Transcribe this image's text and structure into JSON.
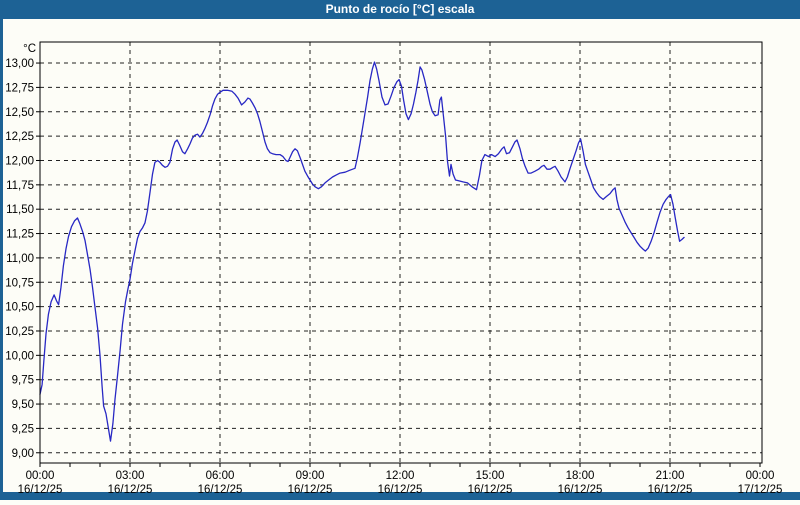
{
  "window": {
    "title": "Punto de rocío [°C] escala"
  },
  "colors": {
    "titlebar_bg": "#1d6295",
    "border_accent": "#1d6295",
    "background": "#fdfdf7",
    "plot_background": "#fdfdf7",
    "line": "#2828c4",
    "grid": "#222222",
    "plot_border": "#000000",
    "text": "#000000"
  },
  "chart_data": {
    "type": "line",
    "title": "Punto de rocío [°C] escala",
    "ylabel": "°C",
    "xlabel": "",
    "grid": true,
    "legend": false,
    "ylim": [
      8.9,
      13.2
    ],
    "xlim_hours": [
      0,
      24.07
    ],
    "y_ticks": [
      {
        "v": 13.0,
        "label": "13,00"
      },
      {
        "v": 12.75,
        "label": "12,75"
      },
      {
        "v": 12.5,
        "label": "12,50"
      },
      {
        "v": 12.25,
        "label": "12,25"
      },
      {
        "v": 12.0,
        "label": "12,00"
      },
      {
        "v": 11.75,
        "label": "11,75"
      },
      {
        "v": 11.5,
        "label": "11,50"
      },
      {
        "v": 11.25,
        "label": "11,25"
      },
      {
        "v": 11.0,
        "label": "11,00"
      },
      {
        "v": 10.75,
        "label": "10,75"
      },
      {
        "v": 10.5,
        "label": "10,50"
      },
      {
        "v": 10.25,
        "label": "10,25"
      },
      {
        "v": 10.0,
        "label": "10,00"
      },
      {
        "v": 9.75,
        "label": "9,75"
      },
      {
        "v": 9.5,
        "label": "9,50"
      },
      {
        "v": 9.25,
        "label": "9,25"
      },
      {
        "v": 9.0,
        "label": "9,00"
      }
    ],
    "x_ticks": [
      {
        "hour": 0,
        "label": "00:00",
        "date": "16/12/25"
      },
      {
        "hour": 3,
        "label": "03:00",
        "date": "16/12/25"
      },
      {
        "hour": 6,
        "label": "06:00",
        "date": "16/12/25"
      },
      {
        "hour": 9,
        "label": "09:00",
        "date": "16/12/25"
      },
      {
        "hour": 12,
        "label": "12:00",
        "date": "16/12/25"
      },
      {
        "hour": 15,
        "label": "15:00",
        "date": "16/12/25"
      },
      {
        "hour": 18,
        "label": "18:00",
        "date": "16/12/25"
      },
      {
        "hour": 21,
        "label": "21:00",
        "date": "16/12/25"
      },
      {
        "hour": 24,
        "label": "00:00",
        "date": "17/12/25"
      }
    ],
    "minor_tick_every_hours": 1,
    "series": [
      {
        "name": "Punto de rocío [°C]",
        "points": [
          [
            0.0,
            9.6
          ],
          [
            0.07,
            9.7
          ],
          [
            0.13,
            9.95
          ],
          [
            0.2,
            10.22
          ],
          [
            0.28,
            10.42
          ],
          [
            0.37,
            10.55
          ],
          [
            0.47,
            10.62
          ],
          [
            0.55,
            10.56
          ],
          [
            0.62,
            10.52
          ],
          [
            0.7,
            10.7
          ],
          [
            0.78,
            10.92
          ],
          [
            0.87,
            11.1
          ],
          [
            0.95,
            11.22
          ],
          [
            1.05,
            11.32
          ],
          [
            1.15,
            11.38
          ],
          [
            1.25,
            11.41
          ],
          [
            1.33,
            11.35
          ],
          [
            1.42,
            11.27
          ],
          [
            1.5,
            11.18
          ],
          [
            1.58,
            11.04
          ],
          [
            1.67,
            10.88
          ],
          [
            1.75,
            10.7
          ],
          [
            1.83,
            10.5
          ],
          [
            1.92,
            10.28
          ],
          [
            2.0,
            10.0
          ],
          [
            2.07,
            9.68
          ],
          [
            2.12,
            9.48
          ],
          [
            2.2,
            9.4
          ],
          [
            2.28,
            9.25
          ],
          [
            2.35,
            9.12
          ],
          [
            2.43,
            9.3
          ],
          [
            2.5,
            9.55
          ],
          [
            2.58,
            9.78
          ],
          [
            2.67,
            10.05
          ],
          [
            2.75,
            10.32
          ],
          [
            2.85,
            10.55
          ],
          [
            2.93,
            10.68
          ],
          [
            3.0,
            10.78
          ],
          [
            3.08,
            10.94
          ],
          [
            3.17,
            11.08
          ],
          [
            3.25,
            11.2
          ],
          [
            3.33,
            11.27
          ],
          [
            3.42,
            11.31
          ],
          [
            3.5,
            11.36
          ],
          [
            3.58,
            11.48
          ],
          [
            3.67,
            11.68
          ],
          [
            3.75,
            11.86
          ],
          [
            3.83,
            11.98
          ],
          [
            3.92,
            12.0
          ],
          [
            4.0,
            11.98
          ],
          [
            4.08,
            11.95
          ],
          [
            4.17,
            11.93
          ],
          [
            4.25,
            11.94
          ],
          [
            4.33,
            11.98
          ],
          [
            4.42,
            12.12
          ],
          [
            4.5,
            12.19
          ],
          [
            4.57,
            12.21
          ],
          [
            4.65,
            12.16
          ],
          [
            4.75,
            12.09
          ],
          [
            4.83,
            12.07
          ],
          [
            4.92,
            12.12
          ],
          [
            5.0,
            12.17
          ],
          [
            5.08,
            12.23
          ],
          [
            5.17,
            12.26
          ],
          [
            5.25,
            12.27
          ],
          [
            5.33,
            12.24
          ],
          [
            5.42,
            12.28
          ],
          [
            5.5,
            12.33
          ],
          [
            5.58,
            12.39
          ],
          [
            5.67,
            12.47
          ],
          [
            5.75,
            12.56
          ],
          [
            5.83,
            12.63
          ],
          [
            5.92,
            12.68
          ],
          [
            6.0,
            12.7
          ],
          [
            6.1,
            12.72
          ],
          [
            6.25,
            12.72
          ],
          [
            6.4,
            12.71
          ],
          [
            6.5,
            12.68
          ],
          [
            6.6,
            12.64
          ],
          [
            6.72,
            12.57
          ],
          [
            6.83,
            12.6
          ],
          [
            6.93,
            12.64
          ],
          [
            7.0,
            12.63
          ],
          [
            7.08,
            12.59
          ],
          [
            7.17,
            12.54
          ],
          [
            7.25,
            12.48
          ],
          [
            7.33,
            12.4
          ],
          [
            7.42,
            12.29
          ],
          [
            7.5,
            12.19
          ],
          [
            7.58,
            12.12
          ],
          [
            7.67,
            12.08
          ],
          [
            7.75,
            12.07
          ],
          [
            7.87,
            12.06
          ],
          [
            8.0,
            12.06
          ],
          [
            8.1,
            12.04
          ],
          [
            8.2,
            12.0
          ],
          [
            8.27,
            11.99
          ],
          [
            8.33,
            12.03
          ],
          [
            8.42,
            12.09
          ],
          [
            8.5,
            12.12
          ],
          [
            8.58,
            12.1
          ],
          [
            8.67,
            12.03
          ],
          [
            8.75,
            11.96
          ],
          [
            8.83,
            11.89
          ],
          [
            8.92,
            11.84
          ],
          [
            9.0,
            11.8
          ],
          [
            9.08,
            11.76
          ],
          [
            9.17,
            11.73
          ],
          [
            9.28,
            11.71
          ],
          [
            9.38,
            11.73
          ],
          [
            9.5,
            11.77
          ],
          [
            9.62,
            11.8
          ],
          [
            9.75,
            11.83
          ],
          [
            9.87,
            11.85
          ],
          [
            10.0,
            11.87
          ],
          [
            10.17,
            11.88
          ],
          [
            10.33,
            11.9
          ],
          [
            10.5,
            11.92
          ],
          [
            10.58,
            12.03
          ],
          [
            10.67,
            12.18
          ],
          [
            10.75,
            12.33
          ],
          [
            10.83,
            12.48
          ],
          [
            10.92,
            12.65
          ],
          [
            11.0,
            12.82
          ],
          [
            11.08,
            12.94
          ],
          [
            11.15,
            13.01
          ],
          [
            11.22,
            12.94
          ],
          [
            11.3,
            12.82
          ],
          [
            11.4,
            12.65
          ],
          [
            11.5,
            12.57
          ],
          [
            11.6,
            12.58
          ],
          [
            11.7,
            12.66
          ],
          [
            11.8,
            12.75
          ],
          [
            11.9,
            12.81
          ],
          [
            11.97,
            12.83
          ],
          [
            12.05,
            12.76
          ],
          [
            12.12,
            12.62
          ],
          [
            12.2,
            12.48
          ],
          [
            12.28,
            12.42
          ],
          [
            12.37,
            12.48
          ],
          [
            12.45,
            12.58
          ],
          [
            12.53,
            12.7
          ],
          [
            12.6,
            12.82
          ],
          [
            12.67,
            12.96
          ],
          [
            12.73,
            12.93
          ],
          [
            12.82,
            12.83
          ],
          [
            12.9,
            12.72
          ],
          [
            13.0,
            12.58
          ],
          [
            13.08,
            12.5
          ],
          [
            13.17,
            12.46
          ],
          [
            13.27,
            12.47
          ],
          [
            13.33,
            12.62
          ],
          [
            13.38,
            12.65
          ],
          [
            13.45,
            12.45
          ],
          [
            13.52,
            12.25
          ],
          [
            13.58,
            12.0
          ],
          [
            13.65,
            11.84
          ],
          [
            13.7,
            11.96
          ],
          [
            13.77,
            11.86
          ],
          [
            13.85,
            11.8
          ],
          [
            13.97,
            11.79
          ],
          [
            14.1,
            11.78
          ],
          [
            14.25,
            11.77
          ],
          [
            14.4,
            11.73
          ],
          [
            14.55,
            11.7
          ],
          [
            14.65,
            11.85
          ],
          [
            14.73,
            12.0
          ],
          [
            14.83,
            12.06
          ],
          [
            14.95,
            12.04
          ],
          [
            15.05,
            12.06
          ],
          [
            15.17,
            12.04
          ],
          [
            15.28,
            12.07
          ],
          [
            15.4,
            12.12
          ],
          [
            15.47,
            12.14
          ],
          [
            15.55,
            12.07
          ],
          [
            15.65,
            12.08
          ],
          [
            15.75,
            12.14
          ],
          [
            15.83,
            12.19
          ],
          [
            15.9,
            12.21
          ],
          [
            16.0,
            12.12
          ],
          [
            16.08,
            12.02
          ],
          [
            16.17,
            11.94
          ],
          [
            16.27,
            11.87
          ],
          [
            16.37,
            11.87
          ],
          [
            16.5,
            11.89
          ],
          [
            16.62,
            11.91
          ],
          [
            16.73,
            11.94
          ],
          [
            16.8,
            11.95
          ],
          [
            16.9,
            11.91
          ],
          [
            17.0,
            11.91
          ],
          [
            17.1,
            11.93
          ],
          [
            17.17,
            11.94
          ],
          [
            17.27,
            11.89
          ],
          [
            17.37,
            11.83
          ],
          [
            17.5,
            11.78
          ],
          [
            17.58,
            11.83
          ],
          [
            17.67,
            11.92
          ],
          [
            17.77,
            12.01
          ],
          [
            17.87,
            12.1
          ],
          [
            17.95,
            12.18
          ],
          [
            18.02,
            12.22
          ],
          [
            18.1,
            12.1
          ],
          [
            18.18,
            11.96
          ],
          [
            18.27,
            11.88
          ],
          [
            18.35,
            11.81
          ],
          [
            18.45,
            11.72
          ],
          [
            18.55,
            11.67
          ],
          [
            18.65,
            11.63
          ],
          [
            18.77,
            11.6
          ],
          [
            18.88,
            11.63
          ],
          [
            19.0,
            11.66
          ],
          [
            19.1,
            11.7
          ],
          [
            19.17,
            11.72
          ],
          [
            19.23,
            11.6
          ],
          [
            19.3,
            11.51
          ],
          [
            19.4,
            11.44
          ],
          [
            19.5,
            11.37
          ],
          [
            19.6,
            11.31
          ],
          [
            19.7,
            11.26
          ],
          [
            19.8,
            11.21
          ],
          [
            19.9,
            11.16
          ],
          [
            20.0,
            11.12
          ],
          [
            20.1,
            11.09
          ],
          [
            20.18,
            11.07
          ],
          [
            20.27,
            11.1
          ],
          [
            20.37,
            11.17
          ],
          [
            20.47,
            11.26
          ],
          [
            20.57,
            11.37
          ],
          [
            20.67,
            11.47
          ],
          [
            20.77,
            11.55
          ],
          [
            20.87,
            11.6
          ],
          [
            20.95,
            11.63
          ],
          [
            21.02,
            11.65
          ],
          [
            21.1,
            11.55
          ],
          [
            21.17,
            11.42
          ],
          [
            21.25,
            11.28
          ],
          [
            21.32,
            11.17
          ],
          [
            21.4,
            11.19
          ],
          [
            21.47,
            11.21
          ]
        ]
      }
    ]
  }
}
